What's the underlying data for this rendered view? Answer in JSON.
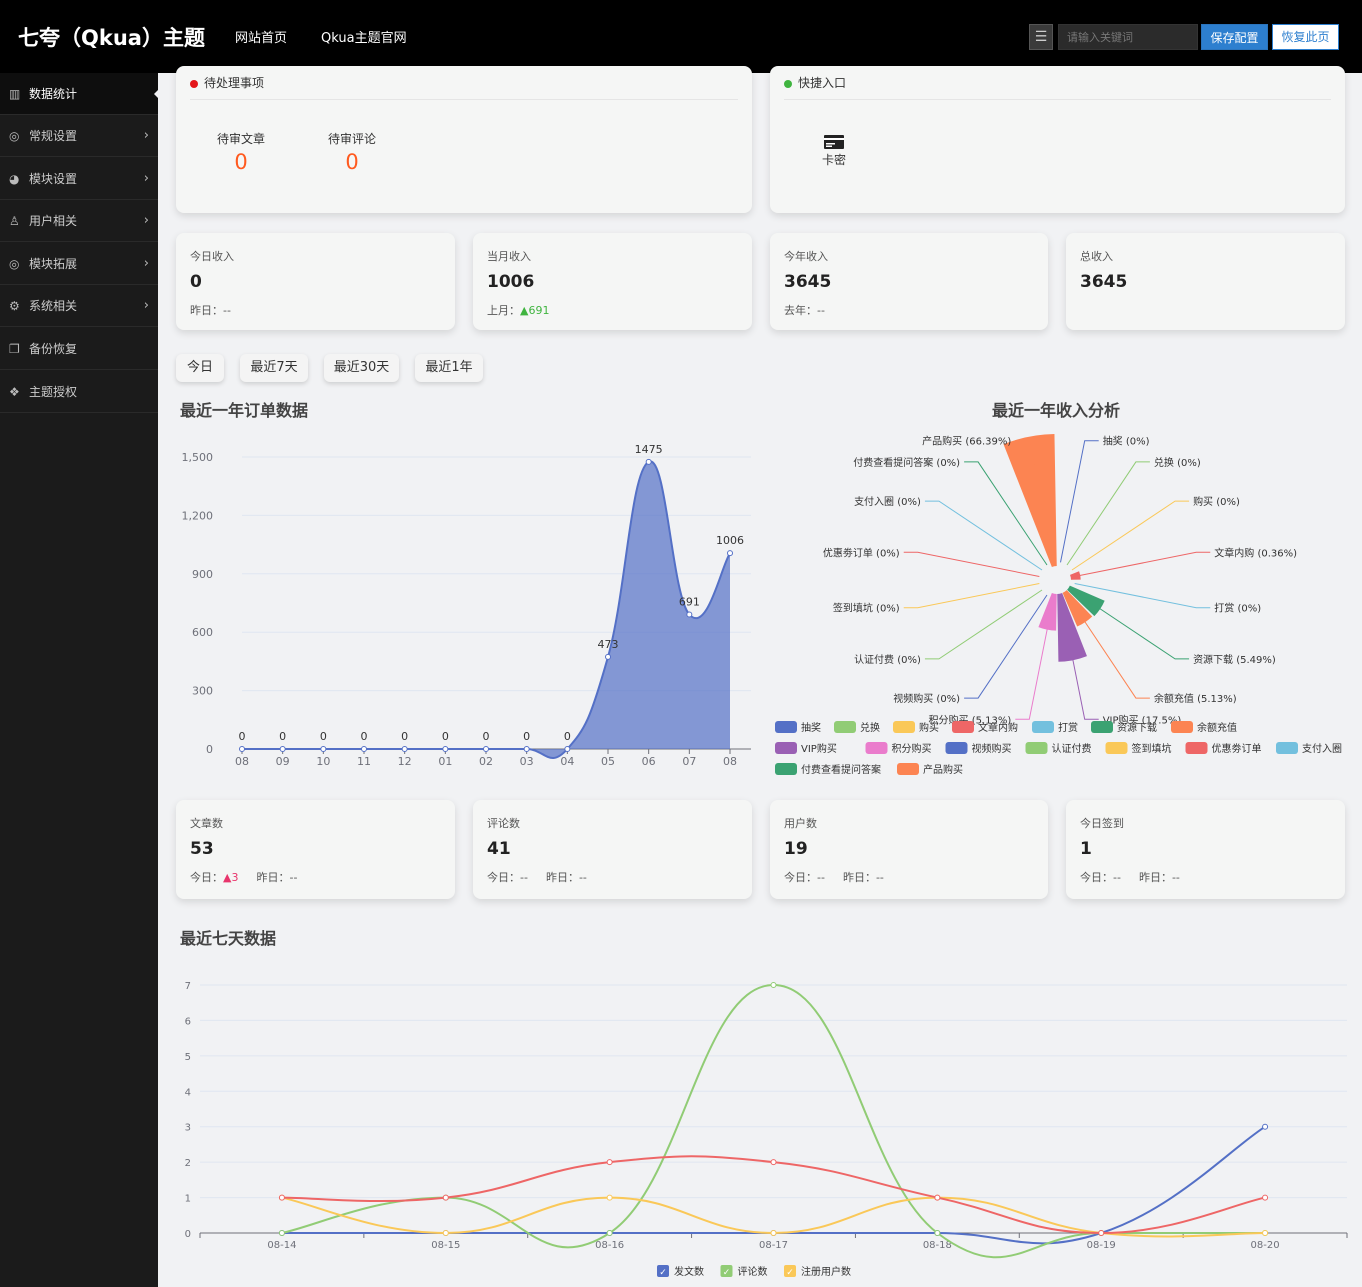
{
  "header": {
    "brand": "七夸（Qkua）主题",
    "nav": [
      "网站首页",
      "Qkua主题官网"
    ],
    "search_placeholder": "请输入关键词",
    "save_label": "保存配置",
    "restore_label": "恢复此页"
  },
  "sidebar": {
    "items": [
      {
        "label": "数据统计",
        "icon": "bar-chart-icon",
        "active": true
      },
      {
        "label": "常规设置",
        "icon": "target-icon",
        "chevron": true
      },
      {
        "label": "模块设置",
        "icon": "pie-icon",
        "chevron": true
      },
      {
        "label": "用户相关",
        "icon": "user-icon",
        "chevron": true
      },
      {
        "label": "模块拓展",
        "icon": "target-icon",
        "chevron": true
      },
      {
        "label": "系统相关",
        "icon": "robot-icon",
        "chevron": true
      },
      {
        "label": "备份恢复",
        "icon": "copy-icon"
      },
      {
        "label": "主题授权",
        "icon": "fox-icon"
      }
    ]
  },
  "pending": {
    "title": "待处理事项",
    "items": [
      {
        "label": "待审文章",
        "value": "0"
      },
      {
        "label": "待审评论",
        "value": "0"
      }
    ]
  },
  "shortcuts": {
    "title": "快捷入口",
    "items": [
      {
        "label": "卡密",
        "icon": "card-icon"
      }
    ]
  },
  "income": [
    {
      "label": "今日收入",
      "value": "0",
      "sub_label": "昨日：",
      "sub_value": "--"
    },
    {
      "label": "当月收入",
      "value": "1006",
      "sub_label": "上月：",
      "sub_value": "691",
      "trend": "up"
    },
    {
      "label": "今年收入",
      "value": "3645",
      "sub_label": "去年：",
      "sub_value": "--"
    },
    {
      "label": "总收入",
      "value": "3645"
    }
  ],
  "ranges": [
    "今日",
    "最近7天",
    "最近30天",
    "最近1年"
  ],
  "order_chart_title": "最近一年订单数据",
  "income_chart_title": "最近一年收入分析",
  "counts": [
    {
      "label": "文章数",
      "value": "53",
      "today_label": "今日：",
      "today_value": "3",
      "today_trend": "up",
      "yesterday_label": "昨日：",
      "yesterday_value": "--"
    },
    {
      "label": "评论数",
      "value": "41",
      "today_label": "今日：",
      "today_value": "--",
      "yesterday_label": "昨日：",
      "yesterday_value": "--"
    },
    {
      "label": "用户数",
      "value": "19",
      "today_label": "今日：",
      "today_value": "--",
      "yesterday_label": "昨日：",
      "yesterday_value": "--"
    },
    {
      "label": "今日签到",
      "value": "1",
      "today_label": "今日：",
      "today_value": "--",
      "yesterday_label": "昨日：",
      "yesterday_value": "--"
    }
  ],
  "week_chart_title": "最近七天数据",
  "chart_data": [
    {
      "type": "area",
      "title": "最近一年订单数据",
      "categories": [
        "08",
        "09",
        "10",
        "11",
        "12",
        "01",
        "02",
        "03",
        "04",
        "05",
        "06",
        "07",
        "08"
      ],
      "values": [
        0,
        0,
        0,
        0,
        0,
        0,
        0,
        0,
        0,
        473,
        1475,
        691,
        1006
      ],
      "ylim": [
        0,
        1500
      ],
      "yticks": [
        "0",
        "300",
        "600",
        "900",
        "1,200",
        "1,500"
      ],
      "color": "#5470c6",
      "grid": true
    },
    {
      "type": "pie",
      "title": "最近一年收入分析",
      "rose": true,
      "slices": [
        {
          "name": "抽奖",
          "value": 0,
          "label": "抽奖 (0%)",
          "color": "#5470c6"
        },
        {
          "name": "兑换",
          "value": 0,
          "label": "兑换 (0%)",
          "color": "#91cc75"
        },
        {
          "name": "购买",
          "value": 0,
          "label": "购买 (0%)",
          "color": "#fac858"
        },
        {
          "name": "文章内购",
          "value": 0.36,
          "label": "文章内购 (0.36%)",
          "color": "#ee6666"
        },
        {
          "name": "打赏",
          "value": 0,
          "label": "打赏 (0%)",
          "color": "#73c0de"
        },
        {
          "name": "资源下载",
          "value": 5.49,
          "label": "资源下载 (5.49%)",
          "color": "#3ba272"
        },
        {
          "name": "余额充值",
          "value": 5.13,
          "label": "余额充值 (5.13%)",
          "color": "#fc8452"
        },
        {
          "name": "VIP购买",
          "value": 17.5,
          "label": "VIP购买 (17.5%)",
          "color": "#9a60b4"
        },
        {
          "name": "积分购买",
          "value": 5.13,
          "label": "积分购买 (5.13%)",
          "color": "#ea7ccc"
        },
        {
          "name": "视频购买",
          "value": 0,
          "label": "视频购买 (0%)",
          "color": "#5470c6"
        },
        {
          "name": "认证付费",
          "value": 0,
          "label": "认证付费 (0%)",
          "color": "#91cc75"
        },
        {
          "name": "签到填坑",
          "value": 0,
          "label": "签到填坑 (0%)",
          "color": "#fac858"
        },
        {
          "name": "优惠劵订单",
          "value": 0,
          "label": "优惠劵订单 (0%)",
          "color": "#ee6666"
        },
        {
          "name": "支付入圈",
          "value": 0,
          "label": "支付入圈 (0%)",
          "color": "#73c0de"
        },
        {
          "name": "付费查看提问答案",
          "value": 0,
          "label": "付费查看提问答案 (0%)",
          "color": "#3ba272"
        },
        {
          "name": "产品购买",
          "value": 66.39,
          "label": "产品购买 (66.39%)",
          "color": "#fc8452"
        }
      ],
      "legend": "bottom"
    },
    {
      "type": "line",
      "title": "最近七天数据",
      "categories": [
        "08-14",
        "08-15",
        "08-16",
        "08-17",
        "08-18",
        "08-19",
        "08-20"
      ],
      "ylim": [
        0,
        7
      ],
      "yticks": [
        "0",
        "1",
        "2",
        "3",
        "4",
        "5",
        "6",
        "7"
      ],
      "series": [
        {
          "name": "发文数",
          "values": [
            0,
            0,
            0,
            0,
            0,
            0,
            3
          ],
          "color": "#5470c6"
        },
        {
          "name": "评论数",
          "values": [
            0,
            1,
            0,
            7,
            0,
            0,
            0
          ],
          "color": "#91cc75"
        },
        {
          "name": "注册用户数",
          "values": [
            1,
            0,
            1,
            0,
            1,
            0,
            0
          ],
          "color": "#fac858"
        },
        {
          "name": "",
          "values": [
            1,
            1,
            2,
            2,
            1,
            0,
            1
          ],
          "color": "#ee6666"
        }
      ],
      "legend": "bottom",
      "grid": true
    }
  ]
}
